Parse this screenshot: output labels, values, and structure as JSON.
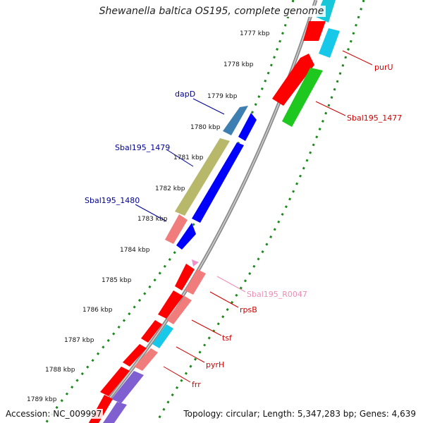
{
  "title": "Shewanella baltica OS195, complete genome",
  "accession": "Accession: NC_009997",
  "topology": "Topology: circular; Length: 5,347,283 bp; Genes: 4,639",
  "colors": {
    "backbone": "#8c8c8c",
    "tick": "#1a8a1a",
    "forward_label": "#d00000",
    "reverse_label": "#00009a",
    "rna_label": "#f08cb4"
  },
  "kbp_labels": [
    "1777 kbp",
    "1778 kbp",
    "1779 kbp",
    "1780 kbp",
    "1781 kbp",
    "1782 kbp",
    "1783 kbp",
    "1784 kbp",
    "1785 kbp",
    "1786 kbp",
    "1787 kbp",
    "1788 kbp",
    "1789 kbp"
  ],
  "gene_labels": [
    {
      "text": "purU",
      "strand": "forward"
    },
    {
      "text": "Sbal195_1477",
      "strand": "forward"
    },
    {
      "text": "dapD",
      "strand": "reverse"
    },
    {
      "text": "Sbal195_1479",
      "strand": "reverse"
    },
    {
      "text": "Sbal195_1480",
      "strand": "reverse"
    },
    {
      "text": "Sbal195_R0047",
      "strand": "rna"
    },
    {
      "text": "rpsB",
      "strand": "forward"
    },
    {
      "text": "tsf",
      "strand": "forward"
    },
    {
      "text": "pyrH",
      "strand": "forward"
    },
    {
      "text": "frr",
      "strand": "forward"
    }
  ]
}
